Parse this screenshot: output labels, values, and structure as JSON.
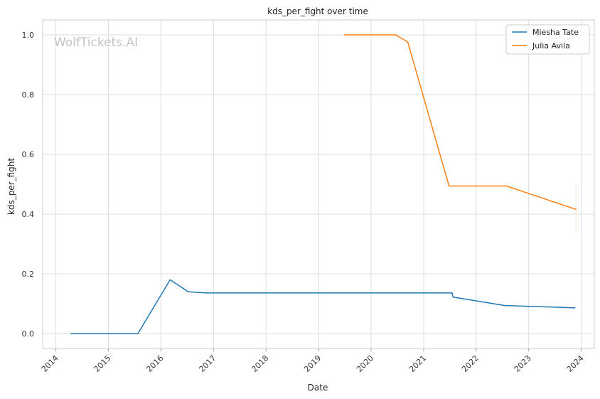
{
  "chart_data": {
    "type": "line",
    "title": "kds_per_fight over time",
    "xlabel": "Date",
    "ylabel": "kds_per_fight",
    "xlim": [
      "2013-10-01",
      "2024-04-01"
    ],
    "ylim": [
      -0.05,
      1.05
    ],
    "x_ticks": [
      "2014",
      "2015",
      "2016",
      "2017",
      "2018",
      "2019",
      "2020",
      "2021",
      "2022",
      "2023",
      "2024"
    ],
    "y_ticks": [
      "0.0",
      "0.2",
      "0.4",
      "0.6",
      "0.8",
      "1.0"
    ],
    "grid": true,
    "legend_position": "top-right",
    "watermark": "WolfTickets.AI",
    "series": [
      {
        "name": "Miesha Tate",
        "color": "#1f77b4",
        "points": [
          {
            "x": "2014-04-15",
            "y": 0.0
          },
          {
            "x": "2015-07-25",
            "y": 0.0
          },
          {
            "x": "2016-03-05",
            "y": 0.18
          },
          {
            "x": "2016-07-09",
            "y": 0.14
          },
          {
            "x": "2016-11-12",
            "y": 0.136
          },
          {
            "x": "2021-07-17",
            "y": 0.136
          },
          {
            "x": "2021-07-24",
            "y": 0.122
          },
          {
            "x": "2022-07-16",
            "y": 0.094
          },
          {
            "x": "2023-11-18",
            "y": 0.086
          }
        ]
      },
      {
        "name": "Julia Avila",
        "color": "#ff7f0e",
        "points": [
          {
            "x": "2019-07-01",
            "y": 1.0
          },
          {
            "x": "2020-06-20",
            "y": 1.0
          },
          {
            "x": "2020-09-12",
            "y": 0.976
          },
          {
            "x": "2021-06-26",
            "y": 0.494
          },
          {
            "x": "2022-07-30",
            "y": 0.494
          },
          {
            "x": "2023-11-25",
            "y": 0.416
          }
        ],
        "error_bar": {
          "x": "2023-11-25",
          "low": 0.333,
          "high": 0.5
        }
      }
    ]
  }
}
